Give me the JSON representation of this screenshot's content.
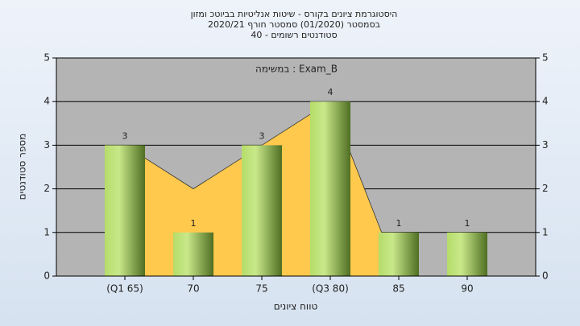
{
  "chart_data": {
    "type": "bar",
    "title": "היסטוגרמת ציונים בקורס - שיטות אנליטיות בביוטכ ומזון",
    "subtitle": [
      "בסמסטר  (01/2020)  סמסטר חורף  2020/21",
      "סטודנטים רשומים - 40"
    ],
    "annotation": "במשימה : Exam_B",
    "x_label": "טווח ציונים",
    "y_label": "מספר סטודנטים",
    "categories": [
      "(Q1 65)",
      "70",
      "75",
      "(Q3 80)",
      "85",
      "90"
    ],
    "series": [
      {
        "color": "#8fc43c",
        "values": [
          3,
          1,
          3,
          4,
          1,
          1
        ]
      },
      {
        "type": "area",
        "color": "#ffc94d",
        "values": [
          3,
          2,
          3,
          4,
          0,
          0
        ]
      }
    ],
    "ylim": [
      0,
      5
    ],
    "yticks": [
      0,
      1,
      2,
      3,
      4,
      5
    ],
    "y2lim": [
      0,
      5
    ],
    "y2ticks": [
      0,
      1,
      2,
      3,
      4,
      5
    ],
    "grid": true
  }
}
